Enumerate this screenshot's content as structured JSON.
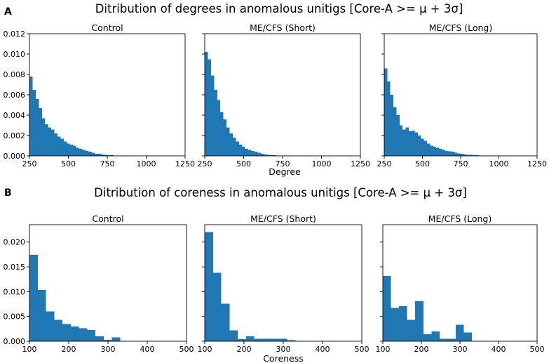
{
  "figure": {
    "sections": [
      {
        "letter": "A",
        "title": "Ditribution of degrees in anomalous unitigs [Core-A >= μ + 3σ]",
        "xlabel": "Degree"
      },
      {
        "letter": "B",
        "title": "Ditribution of coreness in anomalous unitigs [Core-A >= μ + 3σ]",
        "xlabel": "Coreness"
      }
    ]
  },
  "colors": {
    "bar": "#1f77b4"
  },
  "chart_data": [
    {
      "type": "bar",
      "panel": "A",
      "title": "Control",
      "xlim": [
        250,
        1250
      ],
      "ylim": [
        0,
        0.012
      ],
      "xticks": [
        "250",
        "500",
        "750",
        "1000",
        "1250"
      ],
      "yticks": [
        "0.000",
        "0.002",
        "0.004",
        "0.006",
        "0.008",
        "0.010",
        "0.012"
      ],
      "bin_start": 250,
      "bin_width": 20,
      "values": [
        0.0078,
        0.0065,
        0.0056,
        0.0047,
        0.0037,
        0.0031,
        0.0028,
        0.0026,
        0.0022,
        0.0019,
        0.0017,
        0.0014,
        0.0012,
        0.0011,
        0.001,
        0.0008,
        0.0007,
        0.0006,
        0.0005,
        0.0004,
        0.0003,
        0.0002,
        0.0002,
        0.00015,
        0.0001,
        8e-05,
        6e-05,
        5e-05,
        4e-05,
        3e-05,
        3e-05,
        2e-05,
        2e-05,
        2e-05,
        1e-05,
        1e-05,
        1e-05,
        1e-05,
        1e-05,
        1e-05,
        1e-05,
        1e-05
      ]
    },
    {
      "type": "bar",
      "panel": "A",
      "title": "ME/CFS (Short)",
      "xlim": [
        250,
        1250
      ],
      "ylim": [
        0,
        0.012
      ],
      "xticks": [
        "250",
        "500",
        "750",
        "1000",
        "1250"
      ],
      "yticks": [],
      "bin_start": 250,
      "bin_width": 20,
      "values": [
        0.0102,
        0.0095,
        0.0079,
        0.0065,
        0.0055,
        0.0043,
        0.0036,
        0.0028,
        0.0022,
        0.0018,
        0.0014,
        0.0011,
        0.0009,
        0.0007,
        0.0006,
        0.0005,
        0.0004,
        0.0003,
        0.0002,
        0.00015,
        0.0001,
        8e-05,
        6e-05,
        5e-05,
        4e-05,
        3e-05,
        2e-05,
        2e-05,
        1e-05,
        1e-05,
        1e-05,
        1e-05
      ]
    },
    {
      "type": "bar",
      "panel": "A",
      "title": "ME/CFS (Long)",
      "xlim": [
        250,
        1250
      ],
      "ylim": [
        0,
        0.012
      ],
      "xticks": [
        "250",
        "500",
        "750",
        "1000",
        "1250"
      ],
      "yticks": [],
      "bin_start": 250,
      "bin_width": 20,
      "values": [
        0.0086,
        0.0073,
        0.006,
        0.0048,
        0.004,
        0.003,
        0.0026,
        0.0028,
        0.0024,
        0.0025,
        0.0023,
        0.002,
        0.0017,
        0.0015,
        0.0012,
        0.001,
        0.0009,
        0.0008,
        0.0007,
        0.0006,
        0.0005,
        0.00045,
        0.0004,
        0.0003,
        0.00025,
        0.0002,
        0.00015,
        0.00012,
        0.0001,
        8e-05,
        6e-05,
        5e-05,
        4e-05,
        3e-05,
        3e-05,
        2e-05,
        2e-05,
        2e-05,
        1e-05,
        1e-05
      ]
    },
    {
      "type": "bar",
      "panel": "B",
      "title": "Control",
      "xlim": [
        100,
        500
      ],
      "ylim": [
        0,
        0.0235
      ],
      "xticks": [
        "100",
        "200",
        "300",
        "400",
        "500"
      ],
      "yticks": [
        "0.000",
        "0.005",
        "0.010",
        "0.015",
        "0.020"
      ],
      "bin_start": 100,
      "bin_width": 21,
      "values": [
        0.0174,
        0.0103,
        0.006,
        0.0043,
        0.0035,
        0.003,
        0.0026,
        0.0023,
        0.001,
        0.0003,
        0.0008
      ]
    },
    {
      "type": "bar",
      "panel": "B",
      "title": "ME/CFS (Short)",
      "xlim": [
        100,
        500
      ],
      "ylim": [
        0,
        0.0235
      ],
      "xticks": [
        "100",
        "200",
        "300",
        "400",
        "500"
      ],
      "yticks": [],
      "bin_start": 100,
      "bin_width": 21,
      "values": [
        0.022,
        0.0138,
        0.0076,
        0.0022,
        0.0004,
        0.001,
        0.0005,
        0.0005,
        0.0005,
        0.0005,
        0.0002
      ]
    },
    {
      "type": "bar",
      "panel": "B",
      "title": "ME/CFS (Long)",
      "xlim": [
        100,
        500
      ],
      "ylim": [
        0,
        0.0235
      ],
      "xticks": [
        "100",
        "200",
        "300",
        "400",
        "500"
      ],
      "yticks": [],
      "bin_start": 100,
      "bin_width": 21,
      "values": [
        0.0132,
        0.0067,
        0.0071,
        0.0043,
        0.0081,
        0.0014,
        0.002,
        0.0005,
        0.0005,
        0.0033,
        0.0018
      ]
    }
  ]
}
